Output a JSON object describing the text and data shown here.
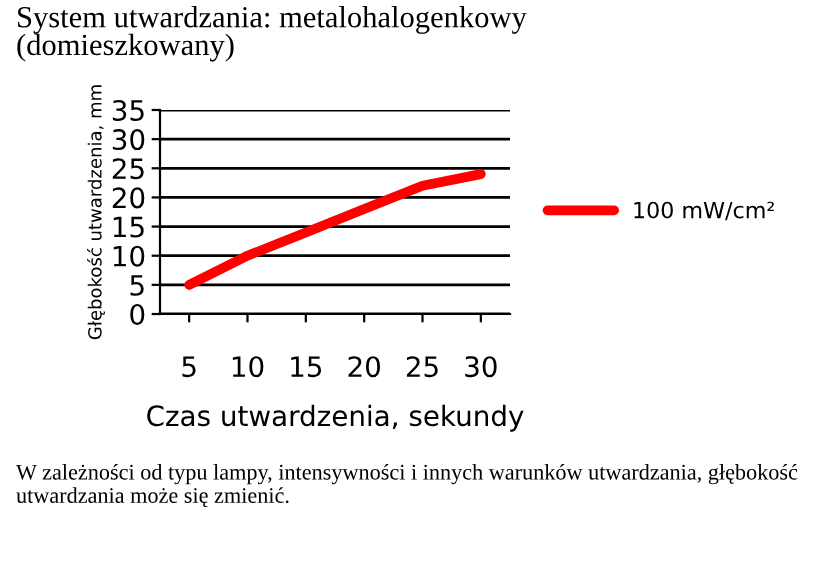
{
  "chart_data": {
    "type": "line",
    "title": "System utwardzania: metalohalogenkowy\n(domieszkowany)",
    "xlabel": "Czas utwardzenia, sekundy",
    "ylabel": "Głębokość utwardzenia, mm",
    "categories": [
      "5",
      "10",
      "15",
      "20",
      "25",
      "30"
    ],
    "series": [
      {
        "name": "100 mW/cm²",
        "color": "#ff0000",
        "values": [
          5,
          10,
          14,
          18,
          22,
          24
        ]
      }
    ],
    "ylim": [
      0,
      35
    ],
    "yticks": [
      0,
      5,
      10,
      15,
      20,
      25,
      30,
      35
    ],
    "grid": "y",
    "legend": "right",
    "marker": "none",
    "line_style": "solid",
    "annotations": [
      "W zależności od typu lampy, intensywności i innych warunków utwardzania, głębokość utwardzania może się zmienić."
    ]
  }
}
